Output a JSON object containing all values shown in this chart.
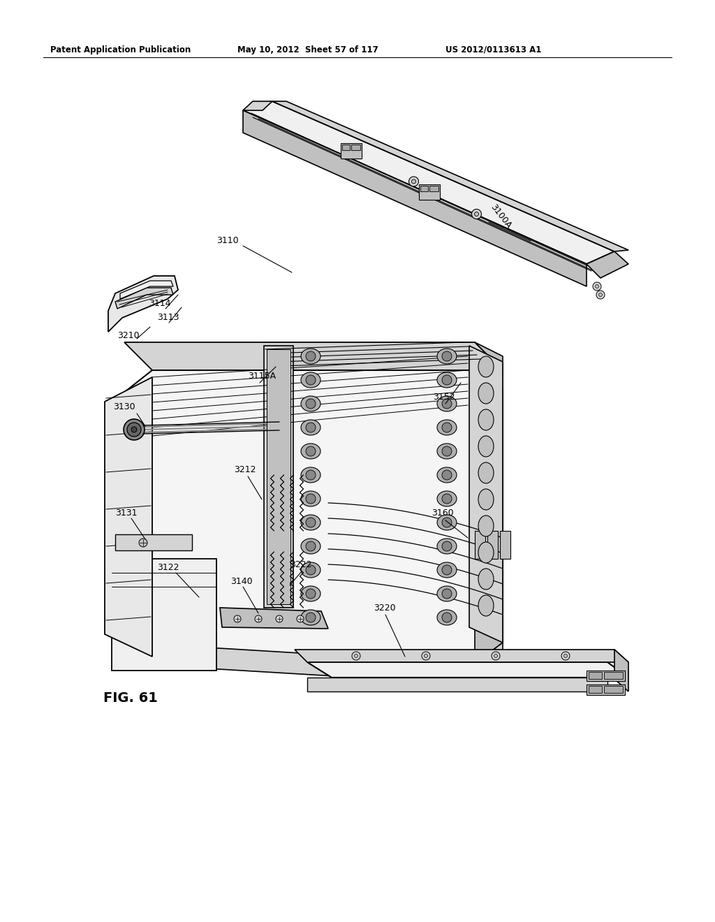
{
  "header_left": "Patent Application Publication",
  "header_mid": "May 10, 2012  Sheet 57 of 117",
  "header_right": "US 2012/0113613 A1",
  "fig_label": "FIG. 61",
  "background_color": "#ffffff",
  "line_color": "#000000",
  "gray_fill": "#e8e8e8",
  "dark_gray": "#c0c0c0",
  "mid_gray": "#d4d4d4",
  "light_gray": "#f0f0f0"
}
